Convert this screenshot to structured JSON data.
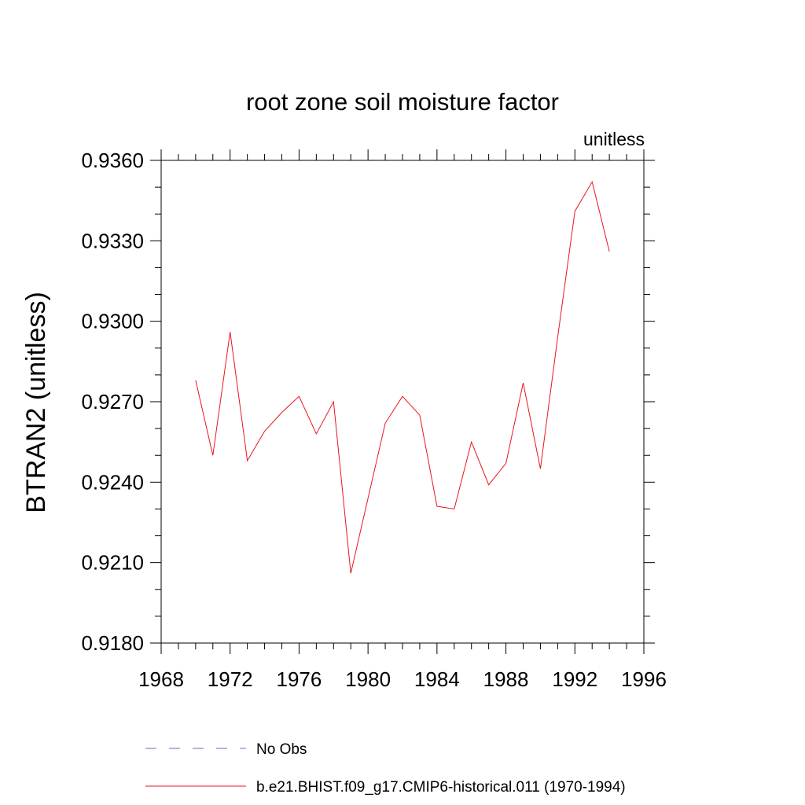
{
  "chart_data": {
    "type": "line",
    "title": "root zone soil moisture factor",
    "units_label": "unitless",
    "xlabel": "",
    "ylabel": "BTRAN2  (unitless)",
    "xlim": [
      1968,
      1996
    ],
    "ylim": [
      0.918,
      0.936
    ],
    "x_ticks": [
      "1968",
      "1972",
      "1976",
      "1980",
      "1984",
      "1988",
      "1992",
      "1996"
    ],
    "y_ticks": [
      "0.9180",
      "0.9210",
      "0.9240",
      "0.9270",
      "0.9300",
      "0.9330",
      "0.9360"
    ],
    "grid": false,
    "legend_position": "bottom",
    "series": [
      {
        "name": "No Obs",
        "style": "dashed",
        "color": "#6b6bb8",
        "x": [],
        "values": []
      },
      {
        "name": "b.e21.BHIST.f09_g17.CMIP6-historical.011 (1970-1994)",
        "style": "solid",
        "color": "#e8141c",
        "x": [
          1970,
          1971,
          1972,
          1973,
          1974,
          1975,
          1976,
          1977,
          1978,
          1979,
          1980,
          1981,
          1982,
          1983,
          1984,
          1985,
          1986,
          1987,
          1988,
          1989,
          1990,
          1991,
          1992,
          1993,
          1994
        ],
        "values": [
          0.9278,
          0.925,
          0.9296,
          0.9248,
          0.9259,
          0.9266,
          0.9272,
          0.9258,
          0.927,
          0.9206,
          0.9234,
          0.9262,
          0.9272,
          0.9265,
          0.9231,
          0.923,
          0.9255,
          0.9239,
          0.9247,
          0.9277,
          0.9245,
          0.9294,
          0.9341,
          0.9352,
          0.9326
        ]
      }
    ]
  }
}
